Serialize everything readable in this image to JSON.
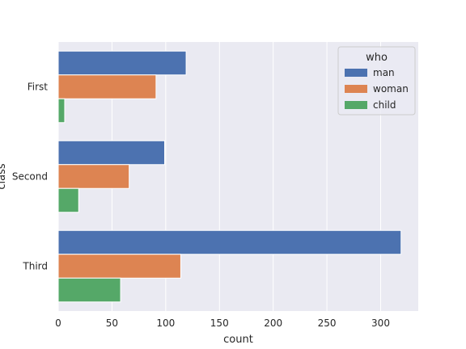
{
  "chart_data": {
    "type": "bar",
    "orientation": "horizontal",
    "categories": [
      "First",
      "Second",
      "Third"
    ],
    "series": [
      {
        "name": "man",
        "values": [
          119,
          99,
          319
        ]
      },
      {
        "name": "woman",
        "values": [
          91,
          66,
          114
        ]
      },
      {
        "name": "child",
        "values": [
          6,
          19,
          58
        ]
      }
    ],
    "xlabel": "count",
    "ylabel": "class",
    "xlim": [
      0,
      335
    ],
    "xticks": [
      0,
      50,
      100,
      150,
      200,
      250,
      300
    ],
    "grid": true,
    "legend": {
      "title": "who",
      "placement": "top-right"
    },
    "colors": {
      "man": "#4c72b0",
      "woman": "#dd8452",
      "child": "#55a868",
      "plot_bg": "#eaeaf2",
      "grid": "#ffffff"
    }
  }
}
